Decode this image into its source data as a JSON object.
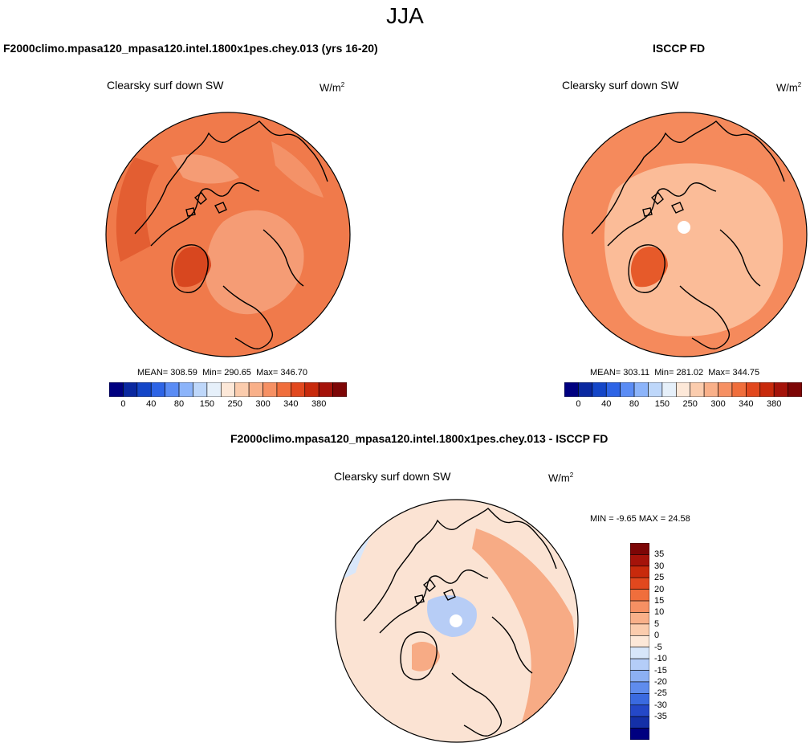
{
  "figure": {
    "season": "JJA",
    "variable": "Clearsky surf down SW",
    "units_base": "W/m",
    "units_exp": "2"
  },
  "panels": {
    "model": {
      "title": "F2000climo.mpasa120_mpasa120.intel.1800x1pes.chey.013 (yrs 16-20)",
      "mean_label": "MEAN=",
      "mean": "308.59",
      "min_label": "Min=",
      "min": "290.65",
      "max_label": "Max=",
      "max": "346.70"
    },
    "obs": {
      "title": "ISCCP FD",
      "mean_label": "MEAN=",
      "mean": "303.11",
      "min_label": "Min=",
      "min": "281.02",
      "max_label": "Max=",
      "max": "344.75"
    },
    "diff": {
      "title": "F2000climo.mpasa120_mpasa120.intel.1800x1pes.chey.013 - ISCCP FD",
      "min_label": "MIN =",
      "min": "-9.65",
      "max_label": "MAX =",
      "max": "24.58"
    }
  },
  "colorbars": {
    "abs_ticks": [
      "0",
      "40",
      "80",
      "150",
      "250",
      "300",
      "340",
      "380"
    ],
    "abs_colors": [
      "#000080",
      "#0a28a0",
      "#1446c8",
      "#2d64e6",
      "#5a8cf5",
      "#8cb4fa",
      "#bed7fa",
      "#e6f0fa",
      "#fde8d8",
      "#fbccad",
      "#f9b089",
      "#f69063",
      "#f06e3c",
      "#e2481e",
      "#c82a0c",
      "#a5130a",
      "#7d0606"
    ],
    "diff_ticks": [
      "35",
      "30",
      "25",
      "20",
      "15",
      "10",
      "5",
      "0",
      "-5",
      "-10",
      "-15",
      "-20",
      "-25",
      "-30",
      "-35"
    ],
    "diff_colors": [
      "#7d0606",
      "#a5130a",
      "#c82a0c",
      "#e2481e",
      "#f06e3c",
      "#f69063",
      "#f9b089",
      "#fbccad",
      "#fde8d8",
      "#d7e6fa",
      "#b4cdf8",
      "#8cb0f3",
      "#5f8ced",
      "#3a6ae0",
      "#2448c8",
      "#1430a8",
      "#000080"
    ]
  },
  "colors": {
    "model_fill": "#f07a4b",
    "model_patch": "#f59c75",
    "model_dark": "#d8471f",
    "obs_fill": "#f58a5c",
    "obs_patch": "#fbbc98",
    "obs_dark": "#e65a2a",
    "diff_fill": "#fbe3d3",
    "diff_warm": "#f7ab85",
    "diff_cool": "#d9e7fa",
    "diff_blue": "#b7cdf6"
  }
}
